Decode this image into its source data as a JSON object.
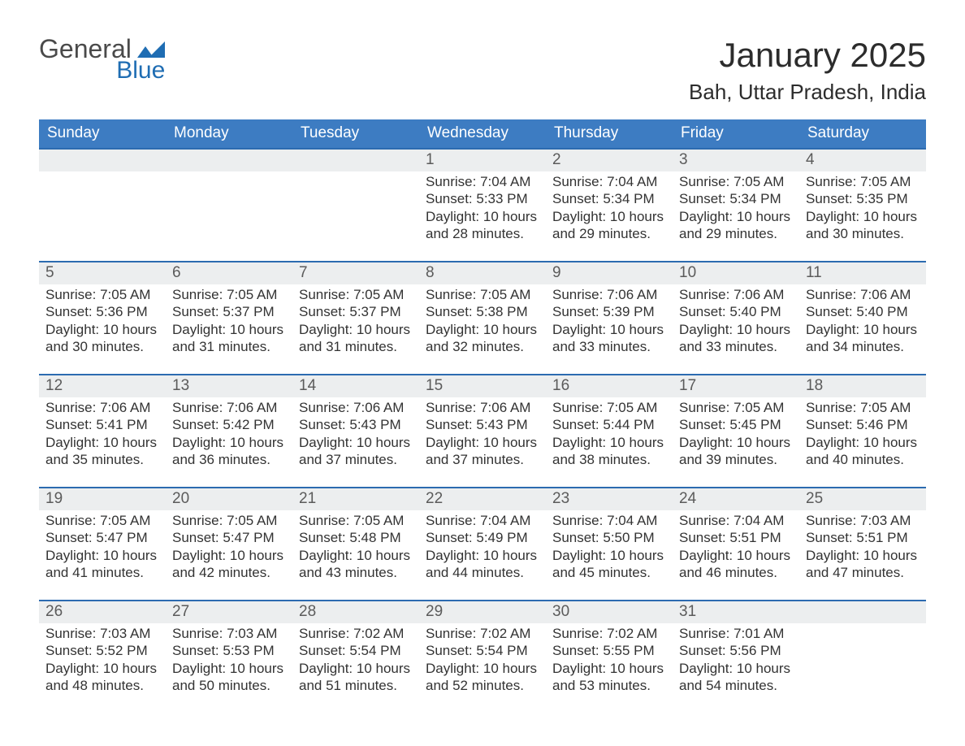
{
  "brand": {
    "part1": "General",
    "part2": "Blue"
  },
  "title": "January 2025",
  "location": "Bah, Uttar Pradesh, India",
  "colors": {
    "header_blue": "#3d7cc2",
    "accent_blue": "#2c6bb0",
    "grey_strip": "#eceeef",
    "logo_dark": "#4a4a4a",
    "logo_blue": "#1f6db3",
    "background": "#ffffff"
  },
  "layout": {
    "columns": 7,
    "day_header_fontsize": 19,
    "daynum_fontsize": 19,
    "body_fontsize": 17,
    "title_fontsize": 42,
    "location_fontsize": 26
  },
  "days_of_week": [
    "Sunday",
    "Monday",
    "Tuesday",
    "Wednesday",
    "Thursday",
    "Friday",
    "Saturday"
  ],
  "weeks": [
    [
      {
        "n": "",
        "sunrise": "",
        "sunset": "",
        "daylight": ""
      },
      {
        "n": "",
        "sunrise": "",
        "sunset": "",
        "daylight": ""
      },
      {
        "n": "",
        "sunrise": "",
        "sunset": "",
        "daylight": ""
      },
      {
        "n": "1",
        "sunrise": "7:04 AM",
        "sunset": "5:33 PM",
        "daylight": "10 hours and 28 minutes."
      },
      {
        "n": "2",
        "sunrise": "7:04 AM",
        "sunset": "5:34 PM",
        "daylight": "10 hours and 29 minutes."
      },
      {
        "n": "3",
        "sunrise": "7:05 AM",
        "sunset": "5:34 PM",
        "daylight": "10 hours and 29 minutes."
      },
      {
        "n": "4",
        "sunrise": "7:05 AM",
        "sunset": "5:35 PM",
        "daylight": "10 hours and 30 minutes."
      }
    ],
    [
      {
        "n": "5",
        "sunrise": "7:05 AM",
        "sunset": "5:36 PM",
        "daylight": "10 hours and 30 minutes."
      },
      {
        "n": "6",
        "sunrise": "7:05 AM",
        "sunset": "5:37 PM",
        "daylight": "10 hours and 31 minutes."
      },
      {
        "n": "7",
        "sunrise": "7:05 AM",
        "sunset": "5:37 PM",
        "daylight": "10 hours and 31 minutes."
      },
      {
        "n": "8",
        "sunrise": "7:05 AM",
        "sunset": "5:38 PM",
        "daylight": "10 hours and 32 minutes."
      },
      {
        "n": "9",
        "sunrise": "7:06 AM",
        "sunset": "5:39 PM",
        "daylight": "10 hours and 33 minutes."
      },
      {
        "n": "10",
        "sunrise": "7:06 AM",
        "sunset": "5:40 PM",
        "daylight": "10 hours and 33 minutes."
      },
      {
        "n": "11",
        "sunrise": "7:06 AM",
        "sunset": "5:40 PM",
        "daylight": "10 hours and 34 minutes."
      }
    ],
    [
      {
        "n": "12",
        "sunrise": "7:06 AM",
        "sunset": "5:41 PM",
        "daylight": "10 hours and 35 minutes."
      },
      {
        "n": "13",
        "sunrise": "7:06 AM",
        "sunset": "5:42 PM",
        "daylight": "10 hours and 36 minutes."
      },
      {
        "n": "14",
        "sunrise": "7:06 AM",
        "sunset": "5:43 PM",
        "daylight": "10 hours and 37 minutes."
      },
      {
        "n": "15",
        "sunrise": "7:06 AM",
        "sunset": "5:43 PM",
        "daylight": "10 hours and 37 minutes."
      },
      {
        "n": "16",
        "sunrise": "7:05 AM",
        "sunset": "5:44 PM",
        "daylight": "10 hours and 38 minutes."
      },
      {
        "n": "17",
        "sunrise": "7:05 AM",
        "sunset": "5:45 PM",
        "daylight": "10 hours and 39 minutes."
      },
      {
        "n": "18",
        "sunrise": "7:05 AM",
        "sunset": "5:46 PM",
        "daylight": "10 hours and 40 minutes."
      }
    ],
    [
      {
        "n": "19",
        "sunrise": "7:05 AM",
        "sunset": "5:47 PM",
        "daylight": "10 hours and 41 minutes."
      },
      {
        "n": "20",
        "sunrise": "7:05 AM",
        "sunset": "5:47 PM",
        "daylight": "10 hours and 42 minutes."
      },
      {
        "n": "21",
        "sunrise": "7:05 AM",
        "sunset": "5:48 PM",
        "daylight": "10 hours and 43 minutes."
      },
      {
        "n": "22",
        "sunrise": "7:04 AM",
        "sunset": "5:49 PM",
        "daylight": "10 hours and 44 minutes."
      },
      {
        "n": "23",
        "sunrise": "7:04 AM",
        "sunset": "5:50 PM",
        "daylight": "10 hours and 45 minutes."
      },
      {
        "n": "24",
        "sunrise": "7:04 AM",
        "sunset": "5:51 PM",
        "daylight": "10 hours and 46 minutes."
      },
      {
        "n": "25",
        "sunrise": "7:03 AM",
        "sunset": "5:51 PM",
        "daylight": "10 hours and 47 minutes."
      }
    ],
    [
      {
        "n": "26",
        "sunrise": "7:03 AM",
        "sunset": "5:52 PM",
        "daylight": "10 hours and 48 minutes."
      },
      {
        "n": "27",
        "sunrise": "7:03 AM",
        "sunset": "5:53 PM",
        "daylight": "10 hours and 50 minutes."
      },
      {
        "n": "28",
        "sunrise": "7:02 AM",
        "sunset": "5:54 PM",
        "daylight": "10 hours and 51 minutes."
      },
      {
        "n": "29",
        "sunrise": "7:02 AM",
        "sunset": "5:54 PM",
        "daylight": "10 hours and 52 minutes."
      },
      {
        "n": "30",
        "sunrise": "7:02 AM",
        "sunset": "5:55 PM",
        "daylight": "10 hours and 53 minutes."
      },
      {
        "n": "31",
        "sunrise": "7:01 AM",
        "sunset": "5:56 PM",
        "daylight": "10 hours and 54 minutes."
      },
      {
        "n": "",
        "sunrise": "",
        "sunset": "",
        "daylight": ""
      }
    ]
  ],
  "labels": {
    "sunrise": "Sunrise: ",
    "sunset": "Sunset: ",
    "daylight": "Daylight: "
  }
}
